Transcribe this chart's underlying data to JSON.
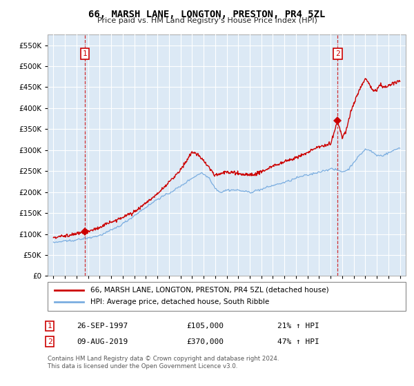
{
  "title": "66, MARSH LANE, LONGTON, PRESTON, PR4 5ZL",
  "subtitle": "Price paid vs. HM Land Registry's House Price Index (HPI)",
  "ytick_values": [
    0,
    50000,
    100000,
    150000,
    200000,
    250000,
    300000,
    350000,
    400000,
    450000,
    500000,
    550000
  ],
  "ylim": [
    0,
    575000
  ],
  "xlim_start": 1994.5,
  "xlim_end": 2025.5,
  "xtick_years": [
    1995,
    1996,
    1997,
    1998,
    1999,
    2000,
    2001,
    2002,
    2003,
    2004,
    2005,
    2006,
    2007,
    2008,
    2009,
    2010,
    2011,
    2012,
    2013,
    2014,
    2015,
    2016,
    2017,
    2018,
    2019,
    2020,
    2021,
    2022,
    2023,
    2024,
    2025
  ],
  "sale1_x": 1997.74,
  "sale1_y": 105000,
  "sale2_x": 2019.61,
  "sale2_y": 370000,
  "sale_color": "#cc0000",
  "hpi_color": "#7aade0",
  "chart_bg": "#dce9f5",
  "legend_property": "66, MARSH LANE, LONGTON, PRESTON, PR4 5ZL (detached house)",
  "legend_hpi": "HPI: Average price, detached house, South Ribble",
  "info1_date": "26-SEP-1997",
  "info1_price": "£105,000",
  "info1_hpi": "21% ↑ HPI",
  "info2_date": "09-AUG-2019",
  "info2_price": "£370,000",
  "info2_hpi": "47% ↑ HPI",
  "footnote": "Contains HM Land Registry data © Crown copyright and database right 2024.\nThis data is licensed under the Open Government Licence v3.0.",
  "background_color": "#ffffff",
  "grid_color": "#ffffff"
}
